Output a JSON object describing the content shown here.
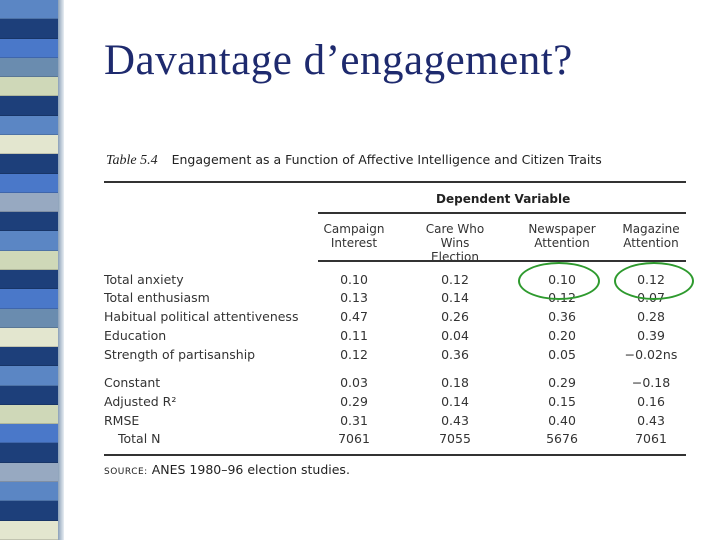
{
  "slide": {
    "title": "Davantage d’engagement?",
    "stripe_colors": [
      "#5b86c4",
      "#1d3f7a",
      "#4a78c9",
      "#6a8caf",
      "#cfd8b8",
      "#1d3f7a",
      "#5b86c4",
      "#e3e6cf",
      "#1d3f7a",
      "#4a78c9",
      "#97a9c1",
      "#1d3f7a",
      "#5b86c4",
      "#cfd8b8",
      "#1d3f7a",
      "#4a78c9",
      "#6a8caf",
      "#e3e6cf",
      "#1d3f7a",
      "#5b86c4",
      "#1d3f7a",
      "#cfd8b8",
      "#4a78c9",
      "#1d3f7a",
      "#97a9c1",
      "#5b86c4",
      "#1d3f7a",
      "#e3e6cf"
    ]
  },
  "table": {
    "number": "Table 5.4",
    "caption": "Engagement as a Function of Affective Intelligence and Citizen Traits",
    "dependent_variable_label": "Dependent Variable",
    "columns": [
      {
        "line1": "Campaign",
        "line2": "Interest"
      },
      {
        "line1": "Care Who Wins",
        "line2": "Election"
      },
      {
        "line1": "Newspaper",
        "line2": "Attention"
      },
      {
        "line1": "Magazine",
        "line2": "Attention"
      }
    ],
    "rows_group1": [
      {
        "label": "Total anxiety",
        "values": [
          "0.10",
          "0.12",
          "0.10",
          "0.12"
        ]
      },
      {
        "label": "Total enthusiasm",
        "values": [
          "0.13",
          "0.14",
          "0.12",
          "0.07"
        ]
      },
      {
        "label": "Habitual political attentiveness",
        "values": [
          "0.47",
          "0.26",
          "0.36",
          "0.28"
        ]
      },
      {
        "label": "Education",
        "values": [
          "0.11",
          "0.04",
          "0.20",
          "0.39"
        ]
      },
      {
        "label": "Strength of partisanship",
        "values": [
          "0.12",
          "0.36",
          "0.05",
          "−0.02ns"
        ]
      }
    ],
    "rows_group2": [
      {
        "label": "Constant",
        "values": [
          "0.03",
          "0.18",
          "0.29",
          "−0.18"
        ]
      },
      {
        "label": "Adjusted R²",
        "values": [
          "0.29",
          "0.14",
          "0.15",
          "0.16"
        ]
      },
      {
        "label": "RMSE",
        "values": [
          "0.31",
          "0.43",
          "0.40",
          "0.43"
        ]
      },
      {
        "label": "Total N",
        "values": [
          "7061",
          "7055",
          "5676",
          "7061"
        ]
      }
    ],
    "source_label": "SOURCE:",
    "source_text": "ANES 1980–96 election studies."
  },
  "highlight_color": "#2e9a2e"
}
